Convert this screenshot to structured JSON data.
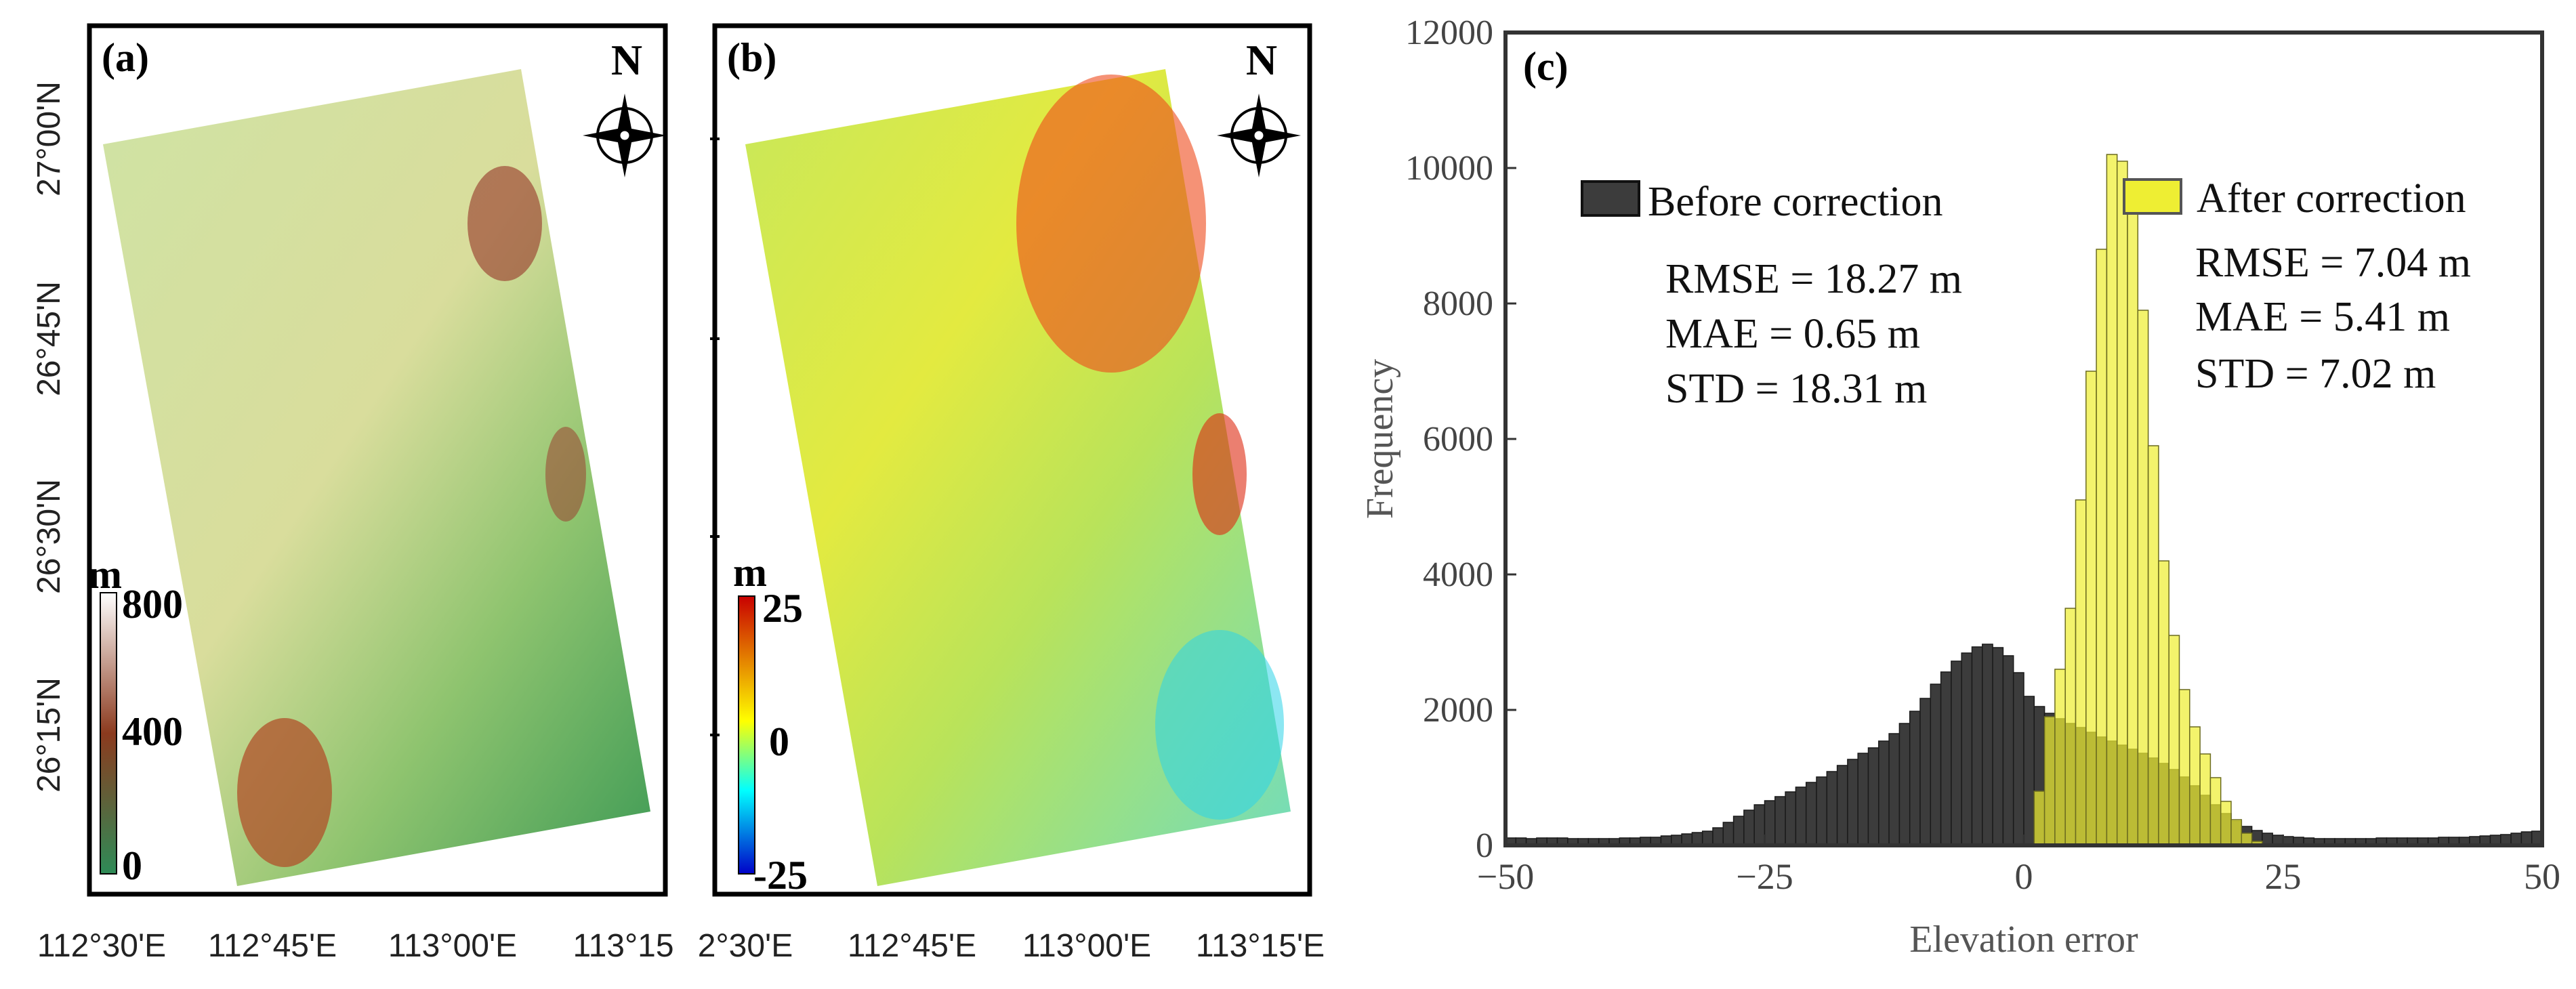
{
  "panel_a": {
    "label": "(a)",
    "north": "N",
    "lat_labels": [
      "27°00'N",
      "26°45'N",
      "26°30'N",
      "26°15'N"
    ],
    "lon_labels": [
      "112°30'E",
      "112°45'E",
      "113°00'E",
      "113°15"
    ],
    "legend_unit": "m",
    "legend_ticks": [
      "800",
      "400",
      "0"
    ],
    "legend_colors": [
      "#ffffff",
      "#8b3a1e",
      "#2e8b57"
    ]
  },
  "panel_b": {
    "label": "(b)",
    "north": "N",
    "lon_labels": [
      "2°30'E",
      "112°45'E",
      "113°00'E",
      "113°15'E"
    ],
    "legend_unit": "m",
    "legend_ticks": [
      "25",
      "0",
      "-25"
    ],
    "legend_colors": [
      "#c80000",
      "#ffff00",
      "#00ffff",
      "#0000c8"
    ]
  },
  "chart_data": {
    "type": "bar",
    "panel_label": "(c)",
    "xlabel": "Elevation error",
    "ylabel": "Frequency",
    "xlim": [
      -50,
      50
    ],
    "ylim": [
      0,
      12000
    ],
    "xticks": [
      "-50",
      "-25",
      "0",
      "25",
      "50"
    ],
    "yticks": [
      "0",
      "2000",
      "4000",
      "6000",
      "8000",
      "10000",
      "12000"
    ],
    "bin_width": 1,
    "bin_start": -50,
    "series": [
      {
        "name": "Before correction",
        "color": "#3c3c3c",
        "stats": [
          "RMSE = 18.27 m",
          "MAE = 0.65 m",
          "STD = 18.31 m"
        ],
        "values": [
          110,
          110,
          100,
          110,
          110,
          110,
          100,
          100,
          100,
          100,
          100,
          110,
          110,
          120,
          120,
          140,
          150,
          170,
          190,
          210,
          260,
          340,
          430,
          520,
          600,
          660,
          720,
          790,
          860,
          930,
          1010,
          1090,
          1180,
          1270,
          1360,
          1440,
          1540,
          1650,
          1800,
          1980,
          2170,
          2380,
          2560,
          2720,
          2840,
          2930,
          2970,
          2920,
          2800,
          2550,
          2200,
          2050,
          1950,
          1870,
          1800,
          1740,
          1670,
          1600,
          1540,
          1480,
          1420,
          1360,
          1290,
          1210,
          1120,
          1010,
          880,
          740,
          600,
          470,
          360,
          280,
          220,
          180,
          150,
          130,
          120,
          110,
          100,
          100,
          100,
          100,
          100,
          100,
          110,
          110,
          110,
          110,
          110,
          110,
          120,
          120,
          120,
          130,
          140,
          150,
          160,
          180,
          200,
          210
        ]
      },
      {
        "name": "After correction",
        "color": "#eeee33",
        "stats": [
          "RMSE = 7.04 m",
          "MAE = 5.41 m",
          "STD = 7.02 m"
        ],
        "values": [
          0,
          0,
          0,
          0,
          0,
          0,
          0,
          0,
          0,
          0,
          0,
          0,
          0,
          0,
          0,
          0,
          0,
          0,
          0,
          0,
          0,
          0,
          0,
          0,
          0,
          0,
          0,
          0,
          0,
          0,
          0,
          0,
          0,
          0,
          0,
          0,
          0,
          0,
          0,
          0,
          0,
          0,
          0,
          0,
          0,
          0,
          0,
          0,
          0,
          0,
          0,
          800,
          1900,
          2600,
          3500,
          5100,
          7000,
          8800,
          10200,
          10100,
          9400,
          7900,
          5900,
          4200,
          3100,
          2300,
          1750,
          1350,
          1000,
          650,
          380,
          180,
          60,
          10,
          0,
          0,
          0,
          0,
          0,
          0,
          0,
          0,
          0,
          0,
          0,
          0,
          0,
          0,
          0,
          0,
          0,
          0,
          0,
          0,
          0,
          0,
          0,
          0,
          0,
          0
        ]
      }
    ]
  }
}
